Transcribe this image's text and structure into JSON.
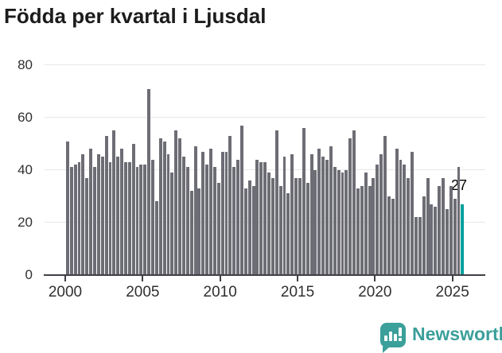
{
  "title": "Födda per kvartal i Ljusdal",
  "chart_data": {
    "type": "bar",
    "title": "Födda per kvartal i Ljusdal",
    "xlabel": "",
    "ylabel": "",
    "ylim": [
      0,
      80
    ],
    "yticks": [
      0,
      20,
      40,
      60,
      80
    ],
    "xticks": [
      "2000",
      "2005",
      "2010",
      "2015",
      "2020",
      "2025"
    ],
    "grid": true,
    "bar_color": "#6d6d75",
    "highlight_color": "#00a09c",
    "unit": "födda per kvartal",
    "series_by_year": [
      {
        "year": 2000,
        "values": [
          51,
          41,
          42,
          43
        ]
      },
      {
        "year": 2001,
        "values": [
          46,
          37,
          48,
          41
        ]
      },
      {
        "year": 2002,
        "values": [
          46,
          45,
          53,
          43
        ]
      },
      {
        "year": 2003,
        "values": [
          55,
          45,
          48,
          43
        ]
      },
      {
        "year": 2004,
        "values": [
          43,
          50,
          41,
          42
        ]
      },
      {
        "year": 2005,
        "values": [
          42,
          71,
          44,
          28
        ]
      },
      {
        "year": 2006,
        "values": [
          52,
          51,
          46,
          39
        ]
      },
      {
        "year": 2007,
        "values": [
          55,
          52,
          45,
          41
        ]
      },
      {
        "year": 2008,
        "values": [
          32,
          49,
          33,
          47
        ]
      },
      {
        "year": 2009,
        "values": [
          42,
          48,
          41,
          35
        ]
      },
      {
        "year": 2010,
        "values": [
          47,
          47,
          53,
          41
        ]
      },
      {
        "year": 2011,
        "values": [
          44,
          57,
          33,
          36
        ]
      },
      {
        "year": 2012,
        "values": [
          34,
          44,
          43,
          43
        ]
      },
      {
        "year": 2013,
        "values": [
          39,
          37,
          55,
          34
        ]
      },
      {
        "year": 2014,
        "values": [
          45,
          31,
          46,
          37
        ]
      },
      {
        "year": 2015,
        "values": [
          37,
          56,
          35,
          46
        ]
      },
      {
        "year": 2016,
        "values": [
          40,
          48,
          45,
          44
        ]
      },
      {
        "year": 2017,
        "values": [
          49,
          41,
          40,
          39
        ]
      },
      {
        "year": 2018,
        "values": [
          40,
          52,
          55,
          33
        ]
      },
      {
        "year": 2019,
        "values": [
          34,
          39,
          34,
          37
        ]
      },
      {
        "year": 2020,
        "values": [
          42,
          46,
          53,
          30
        ]
      },
      {
        "year": 2021,
        "values": [
          29,
          48,
          44,
          42
        ]
      },
      {
        "year": 2022,
        "values": [
          37,
          47,
          22,
          22
        ]
      },
      {
        "year": 2023,
        "values": [
          30,
          37,
          27,
          26
        ]
      },
      {
        "year": 2024,
        "values": [
          34,
          37,
          25,
          34
        ]
      },
      {
        "year": 2025,
        "values": [
          29,
          41,
          27
        ]
      }
    ],
    "highlight": {
      "period": "2025 Q3",
      "value": 27,
      "label": "27"
    }
  },
  "footer": {
    "brand": "Newsworthy",
    "brand_color": "#3b9f9a",
    "logo_icon": "bar-chart-exclamation-bubble"
  }
}
